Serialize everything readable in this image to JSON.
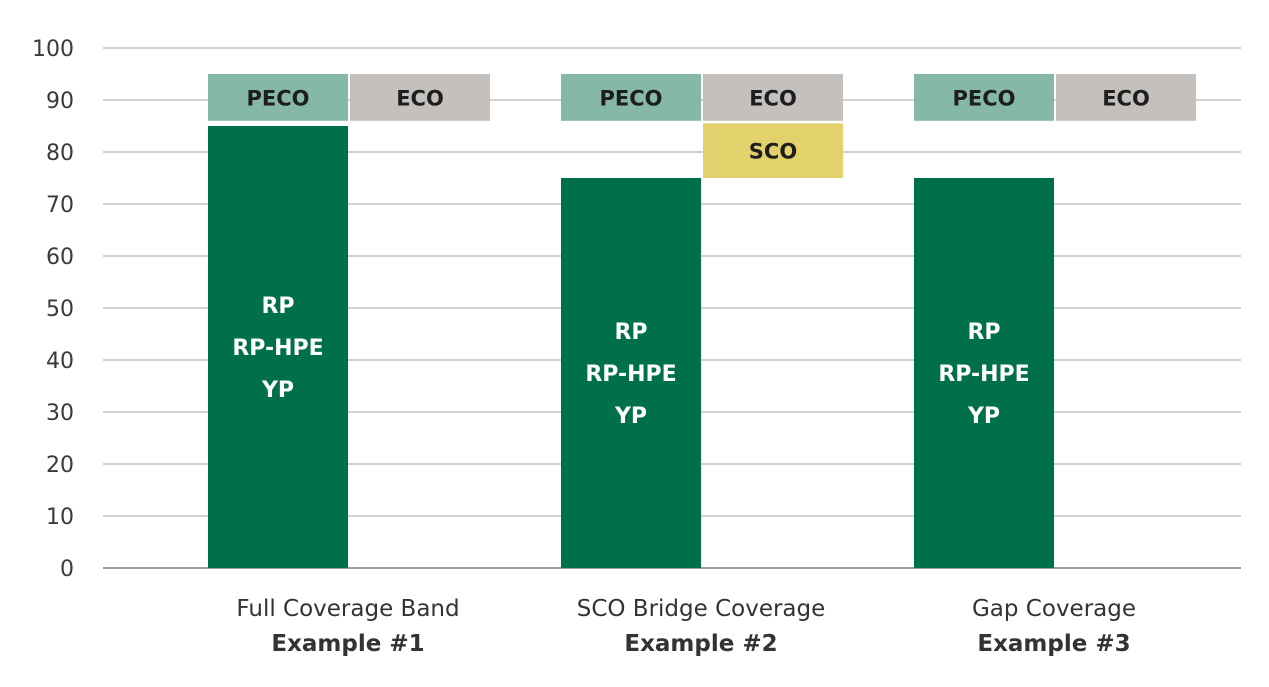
{
  "chart_data": {
    "type": "bar",
    "ylim": [
      0,
      100
    ],
    "yticks": [
      0,
      10,
      20,
      30,
      40,
      50,
      60,
      70,
      80,
      90,
      100
    ],
    "grid": true,
    "colors": {
      "base": "#00704a",
      "PECO": "#86b9a5",
      "ECO": "#c4c0bd",
      "SCO": "#e3d26b",
      "grid": "#b3b3b3",
      "axis": "#7f7f7f"
    },
    "groups": [
      {
        "label": "Full Coverage Band",
        "sublabel": "Example #1",
        "base": {
          "value": 85,
          "labels": [
            "RP",
            "RP-HPE",
            "YP"
          ]
        },
        "segments": [
          {
            "name": "PECO",
            "slot": 0,
            "from": 86,
            "to": 95
          },
          {
            "name": "ECO",
            "slot": 1,
            "from": 86,
            "to": 95
          }
        ]
      },
      {
        "label": "SCO Bridge Coverage",
        "sublabel": "Example #2",
        "base": {
          "value": 75,
          "labels": [
            "RP",
            "RP-HPE",
            "YP"
          ]
        },
        "segments": [
          {
            "name": "PECO",
            "slot": 0,
            "from": 86,
            "to": 95
          },
          {
            "name": "ECO",
            "slot": 1,
            "from": 86,
            "to": 95
          },
          {
            "name": "SCO",
            "slot": 1,
            "from": 75,
            "to": 85.5
          }
        ]
      },
      {
        "label": "Gap Coverage",
        "sublabel": "Example #3",
        "base": {
          "value": 75,
          "labels": [
            "RP",
            "RP-HPE",
            "YP"
          ]
        },
        "segments": [
          {
            "name": "PECO",
            "slot": 0,
            "from": 86,
            "to": 95
          },
          {
            "name": "ECO",
            "slot": 1,
            "from": 86,
            "to": 95
          }
        ]
      }
    ]
  }
}
